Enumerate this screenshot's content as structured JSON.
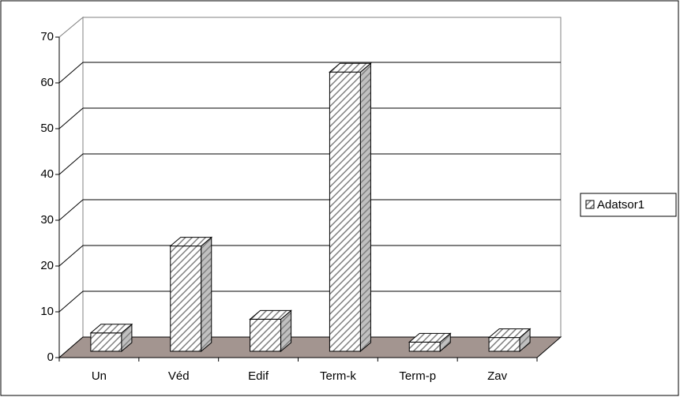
{
  "chart_data": {
    "type": "bar3d",
    "categories": [
      "Un",
      "Véd",
      "Edif",
      "Term-k",
      "Term-p",
      "Zav"
    ],
    "series": [
      {
        "name": "Adatsor1",
        "color": "#808080",
        "values": [
          4,
          23,
          7,
          61,
          2,
          3
        ]
      }
    ],
    "ylim": [
      0,
      70
    ],
    "yticks": [
      0,
      10,
      20,
      30,
      40,
      50,
      60,
      70
    ],
    "grid": true,
    "legend": "right"
  }
}
